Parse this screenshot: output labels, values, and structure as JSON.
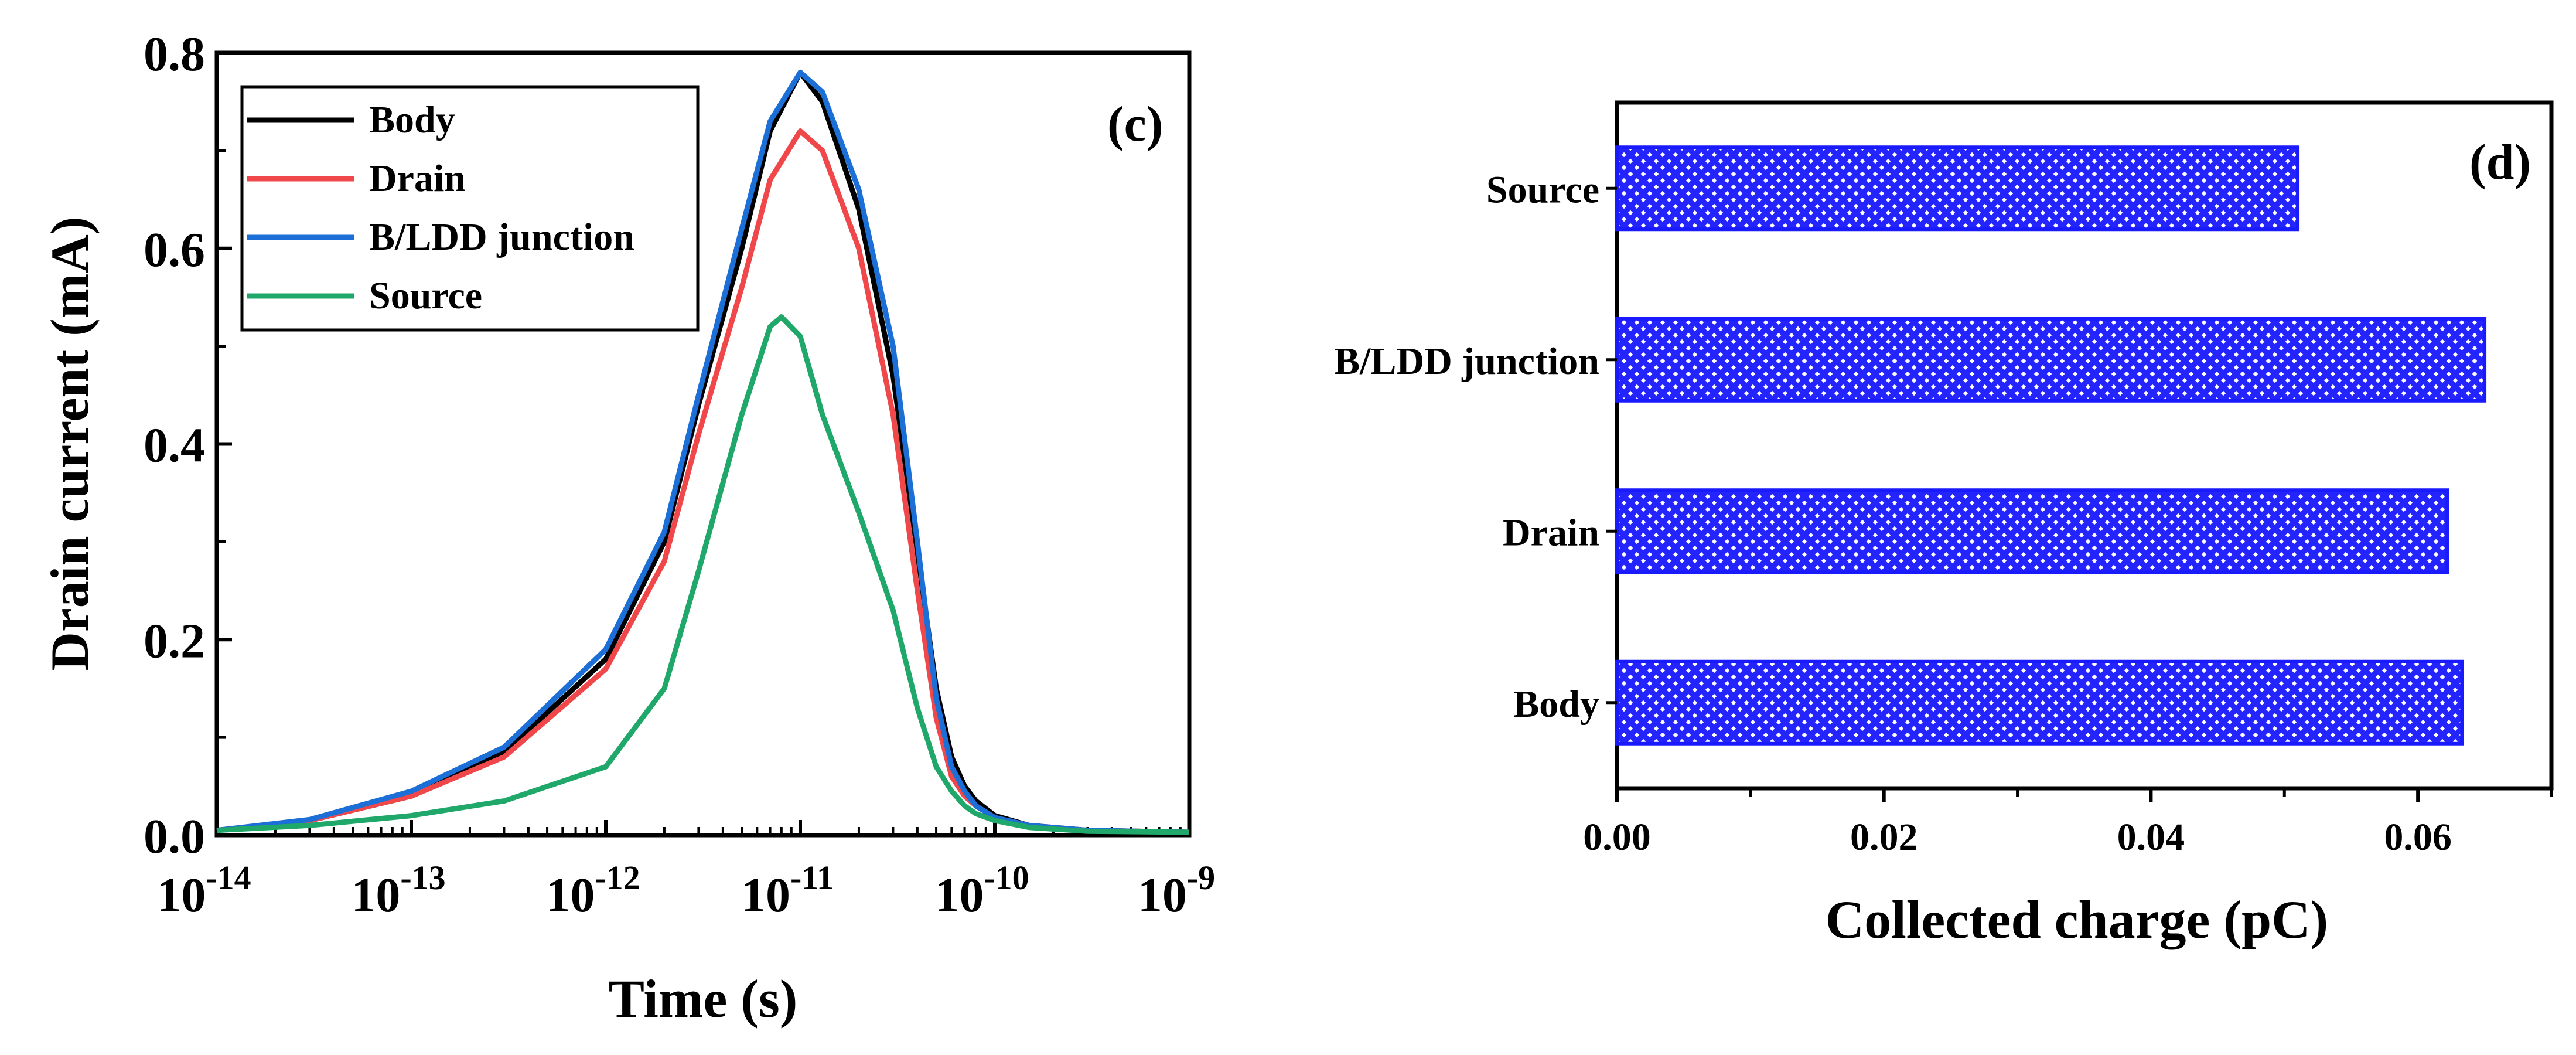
{
  "chart_data": [
    {
      "type": "line",
      "panel_label": "(c)",
      "xlabel": "Time (s)",
      "ylabel": "Drain current (mA)",
      "xscale": "log",
      "xlim": [
        1e-14,
        1e-09
      ],
      "ylim": [
        0,
        0.8
      ],
      "xticks": [
        {
          "base": "10",
          "exp": "-14",
          "value": -14
        },
        {
          "base": "10",
          "exp": "-13",
          "value": -13
        },
        {
          "base": "10",
          "exp": "-12",
          "value": -12
        },
        {
          "base": "10",
          "exp": "-11",
          "value": -11
        },
        {
          "base": "10",
          "exp": "-10",
          "value": -10
        },
        {
          "base": "10",
          "exp": "-9",
          "value": -9
        }
      ],
      "yticks": [
        "0.0",
        "0.2",
        "0.4",
        "0.6",
        "0.8"
      ],
      "ytick_values": [
        0,
        0.2,
        0.4,
        0.6,
        0.8
      ],
      "legend_position": "top-left",
      "series": [
        {
          "name": "Body",
          "color": "#000000",
          "x": [
            1e-14,
            3e-14,
            1e-13,
            3e-13,
            1e-12,
            2e-12,
            3e-12,
            5e-12,
            7e-12,
            1e-11,
            1.3e-11,
            2e-11,
            3e-11,
            4e-11,
            5e-11,
            6e-11,
            7e-11,
            8e-11,
            1e-10,
            1.5e-10,
            3e-10,
            1e-09
          ],
          "y": [
            0.005,
            0.015,
            0.04,
            0.085,
            0.18,
            0.3,
            0.44,
            0.6,
            0.72,
            0.78,
            0.75,
            0.64,
            0.47,
            0.29,
            0.15,
            0.08,
            0.05,
            0.035,
            0.02,
            0.01,
            0.005,
            0.003
          ]
        },
        {
          "name": "Drain",
          "color": "#f0484a",
          "x": [
            1e-14,
            3e-14,
            1e-13,
            3e-13,
            1e-12,
            2e-12,
            3e-12,
            5e-12,
            7e-12,
            1e-11,
            1.3e-11,
            2e-11,
            3e-11,
            4e-11,
            5e-11,
            6e-11,
            7e-11,
            8e-11,
            1e-10,
            1.5e-10,
            3e-10,
            1e-09
          ],
          "y": [
            0.005,
            0.015,
            0.04,
            0.08,
            0.17,
            0.28,
            0.41,
            0.56,
            0.67,
            0.72,
            0.7,
            0.6,
            0.43,
            0.25,
            0.12,
            0.06,
            0.04,
            0.03,
            0.018,
            0.01,
            0.005,
            0.003
          ]
        },
        {
          "name": "B/LDD junction",
          "color": "#1b6fd6",
          "x": [
            1e-14,
            3e-14,
            1e-13,
            3e-13,
            1e-12,
            2e-12,
            3e-12,
            5e-12,
            7e-12,
            1e-11,
            1.3e-11,
            2e-11,
            3e-11,
            4e-11,
            5e-11,
            6e-11,
            7e-11,
            8e-11,
            1e-10,
            1.5e-10,
            3e-10,
            1e-09
          ],
          "y": [
            0.005,
            0.016,
            0.045,
            0.09,
            0.19,
            0.31,
            0.45,
            0.62,
            0.73,
            0.78,
            0.76,
            0.66,
            0.5,
            0.3,
            0.14,
            0.07,
            0.045,
            0.03,
            0.018,
            0.01,
            0.005,
            0.003
          ]
        },
        {
          "name": "Source",
          "color": "#1fa86a",
          "x": [
            1e-14,
            3e-14,
            1e-13,
            3e-13,
            1e-12,
            2e-12,
            3e-12,
            5e-12,
            7e-12,
            8e-12,
            1e-11,
            1.3e-11,
            2e-11,
            3e-11,
            4e-11,
            5e-11,
            6e-11,
            7e-11,
            8e-11,
            1e-10,
            1.5e-10,
            3e-10,
            1e-09
          ],
          "y": [
            0.005,
            0.01,
            0.02,
            0.035,
            0.07,
            0.15,
            0.27,
            0.43,
            0.52,
            0.53,
            0.51,
            0.43,
            0.33,
            0.23,
            0.13,
            0.07,
            0.045,
            0.03,
            0.022,
            0.015,
            0.008,
            0.004,
            0.003
          ]
        }
      ]
    },
    {
      "type": "bar",
      "orientation": "horizontal",
      "panel_label": "(d)",
      "xlabel": "Collected charge (pC)",
      "ylabel": "",
      "xlim": [
        0,
        0.07
      ],
      "xticks": [
        "0.00",
        "0.02",
        "0.04",
        "0.06"
      ],
      "xtick_values": [
        0,
        0.02,
        0.04,
        0.06
      ],
      "bar_color": "#1a1aff",
      "bar_pattern": "crosshatch",
      "categories": [
        "Body",
        "Drain",
        "B/LDD junction",
        "Source"
      ],
      "values": [
        0.0633,
        0.0622,
        0.065,
        0.051
      ]
    }
  ]
}
